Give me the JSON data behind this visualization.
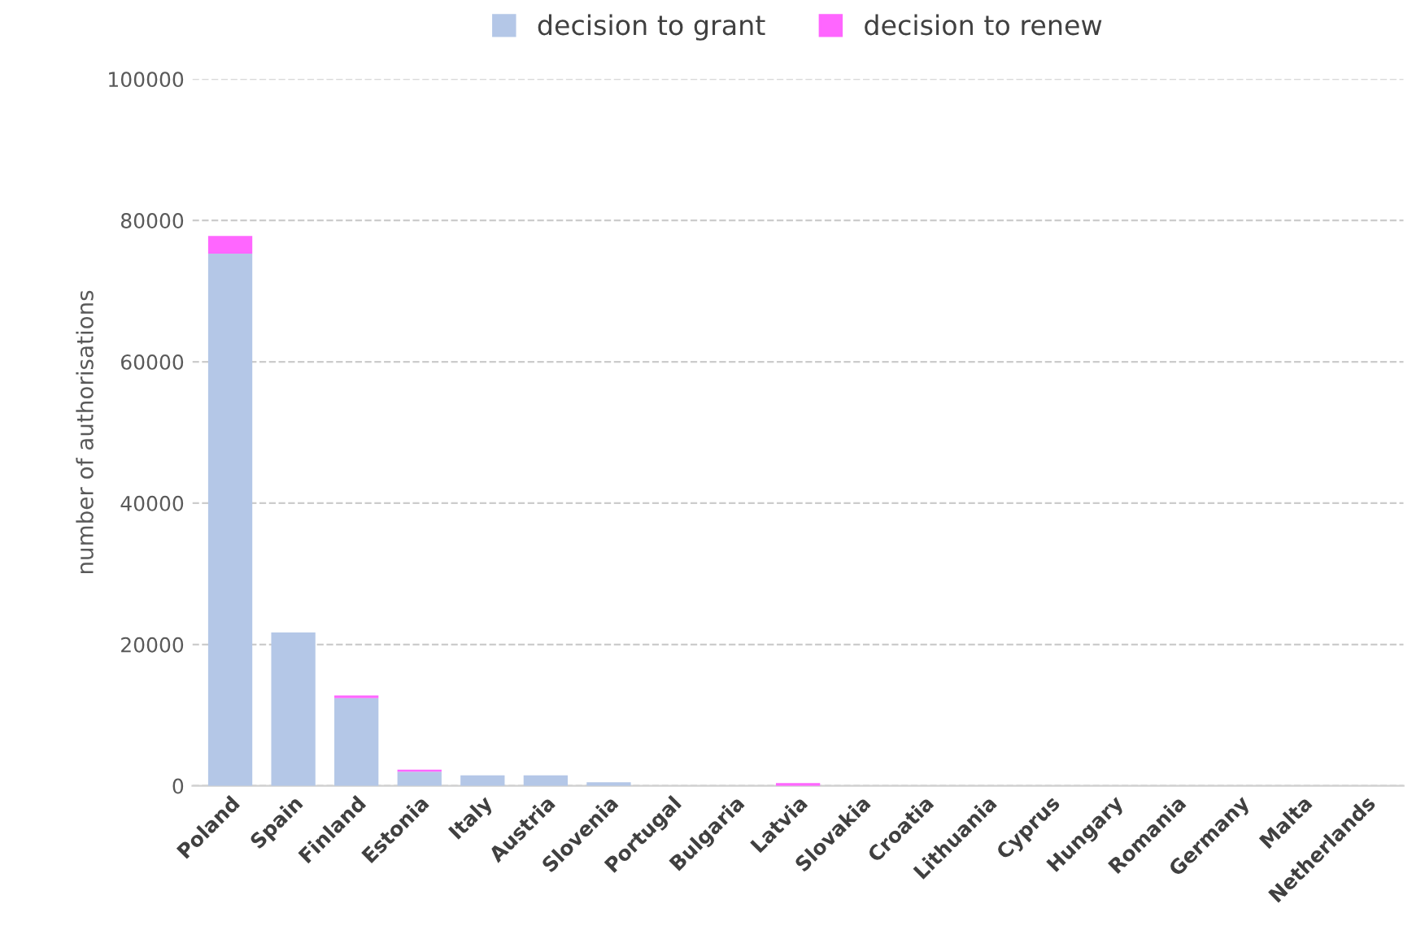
{
  "chart_data": {
    "type": "bar",
    "stacked": true,
    "ylabel": "number of authorisations",
    "categories": [
      "Poland",
      "Spain",
      "Finland",
      "Estonia",
      "Italy",
      "Austria",
      "Slovenia",
      "Portugal",
      "Bulgaria",
      "Latvia",
      "Slovakia",
      "Croatia",
      "Lithuania",
      "Cyprus",
      "Hungary",
      "Romania",
      "Germany",
      "Malta",
      "Netherlands"
    ],
    "series": [
      {
        "name": "decision to grant",
        "color": "#b4c7e7",
        "values": [
          75300,
          21700,
          12400,
          2000,
          1500,
          1500,
          500,
          0,
          0,
          0,
          0,
          0,
          0,
          0,
          0,
          0,
          0,
          0,
          0
        ]
      },
      {
        "name": "decision to renew",
        "color": "#ff66ff",
        "values": [
          2500,
          0,
          400,
          300,
          0,
          0,
          0,
          0,
          0,
          400,
          0,
          0,
          0,
          0,
          0,
          0,
          0,
          0,
          0
        ]
      }
    ],
    "ylim": [
      0,
      100000
    ],
    "yticks": [
      0,
      20000,
      40000,
      60000,
      80000,
      100000
    ],
    "grid": "y",
    "legend": "top"
  }
}
